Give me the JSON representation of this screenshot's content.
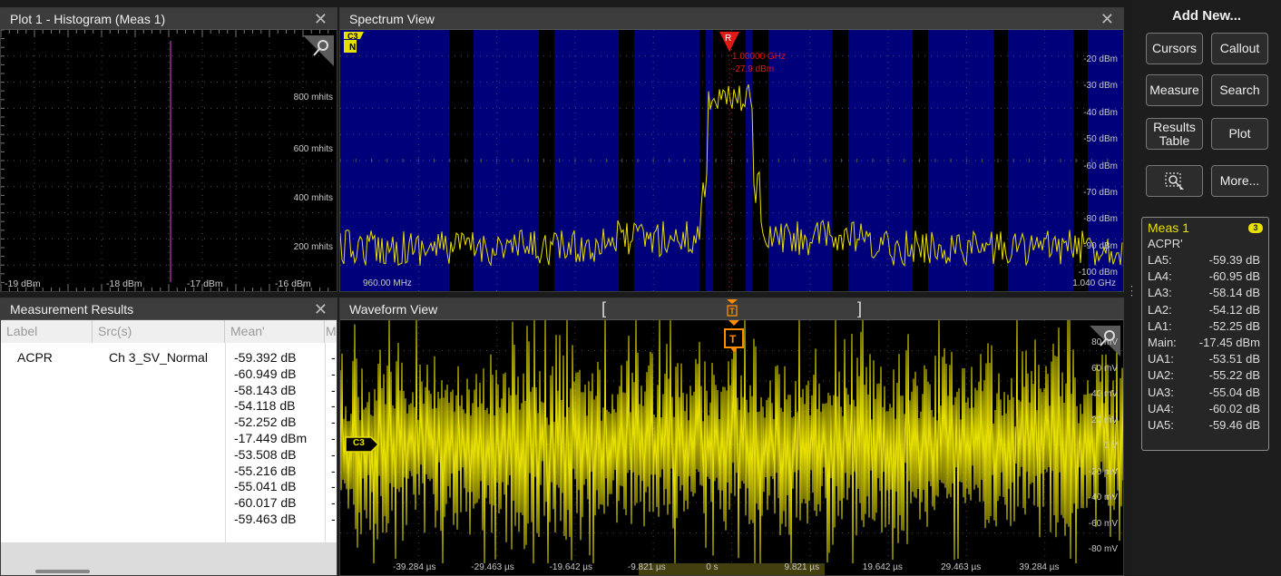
{
  "histogram": {
    "title": "Plot 1 - Histogram (Meas 1)",
    "y_labels": [
      "800 mhits",
      "600 mhits",
      "400 mhits",
      "200 mhits"
    ],
    "x_labels": [
      "-19 dBm",
      "-18 dBm",
      "-17 dBm",
      "-16 dBm"
    ],
    "bar_value_dbm": -17.45
  },
  "spectrum": {
    "title": "Spectrum View",
    "channel_tag": "C3",
    "channel_sub": "N",
    "marker_tag": "R",
    "marker_freq": "1.00000 GHz",
    "marker_level": "-27.9 dBm",
    "y_labels": [
      "-20 dBm",
      "-30 dBm",
      "-40 dBm",
      "-50 dBm",
      "-60 dBm",
      "-70 dBm",
      "-80 dBm",
      "-90 dBm",
      "-100 dBm"
    ],
    "x_start": "960.00 MHz",
    "x_end": "1.040 GHz"
  },
  "measurement_results": {
    "title": "Measurement Results",
    "columns": [
      "Label",
      "Src(s)",
      "Mean'",
      "M"
    ],
    "label": "ACPR",
    "source": "Ch 3_SV_Normal",
    "means": [
      "-59.392 dB",
      "-60.949 dB",
      "-58.143 dB",
      "-54.118 dB",
      "-52.252 dB",
      "-17.449 dBm",
      "-53.508 dB",
      "-55.216 dB",
      "-55.041 dB",
      "-60.017 dB",
      "-59.463 dB"
    ]
  },
  "waveform": {
    "title": "Waveform View",
    "trigger_tag": "T",
    "channel_tag": "C3",
    "y_labels": [
      "80 mV",
      "60 mV",
      "40 mV",
      "20 mV",
      "0 V",
      "-20 mV",
      "-40 mV",
      "-60 mV",
      "-80 mV"
    ],
    "x_labels": [
      "-39.284 µs",
      "-29.463 µs",
      "-19.642 µs",
      "-9.821 µs",
      "0 s",
      "9.821 µs",
      "19.642 µs",
      "29.463 µs",
      "39.284 µs"
    ]
  },
  "sidebar": {
    "title": "Add New...",
    "buttons": {
      "cursors": "Cursors",
      "callout": "Callout",
      "measure": "Measure",
      "search": "Search",
      "results_table": "Results Table",
      "plot": "Plot",
      "more": "More..."
    },
    "meas_badge": {
      "title": "Meas 1",
      "channel": "3",
      "subtitle": "ACPR'",
      "rows": [
        {
          "k": "LA5:",
          "v": "-59.39 dB"
        },
        {
          "k": "LA4:",
          "v": "-60.95 dB"
        },
        {
          "k": "LA3:",
          "v": "-58.14 dB"
        },
        {
          "k": "LA2:",
          "v": "-54.12 dB"
        },
        {
          "k": "LA1:",
          "v": "-52.25 dB"
        },
        {
          "k": "Main:",
          "v": "-17.45 dBm"
        },
        {
          "k": "UA1:",
          "v": "-53.51 dB"
        },
        {
          "k": "UA2:",
          "v": "-55.22 dB"
        },
        {
          "k": "UA3:",
          "v": "-55.04 dB"
        },
        {
          "k": "UA4:",
          "v": "-60.02 dB"
        },
        {
          "k": "UA5:",
          "v": "-59.46 dB"
        }
      ]
    }
  },
  "colors": {
    "trace": "#e8e000",
    "spectrum_band": "#00007a",
    "marker": "#e01818",
    "trigger": "#ff8c00",
    "hist_bar": "#9b2f9b"
  }
}
